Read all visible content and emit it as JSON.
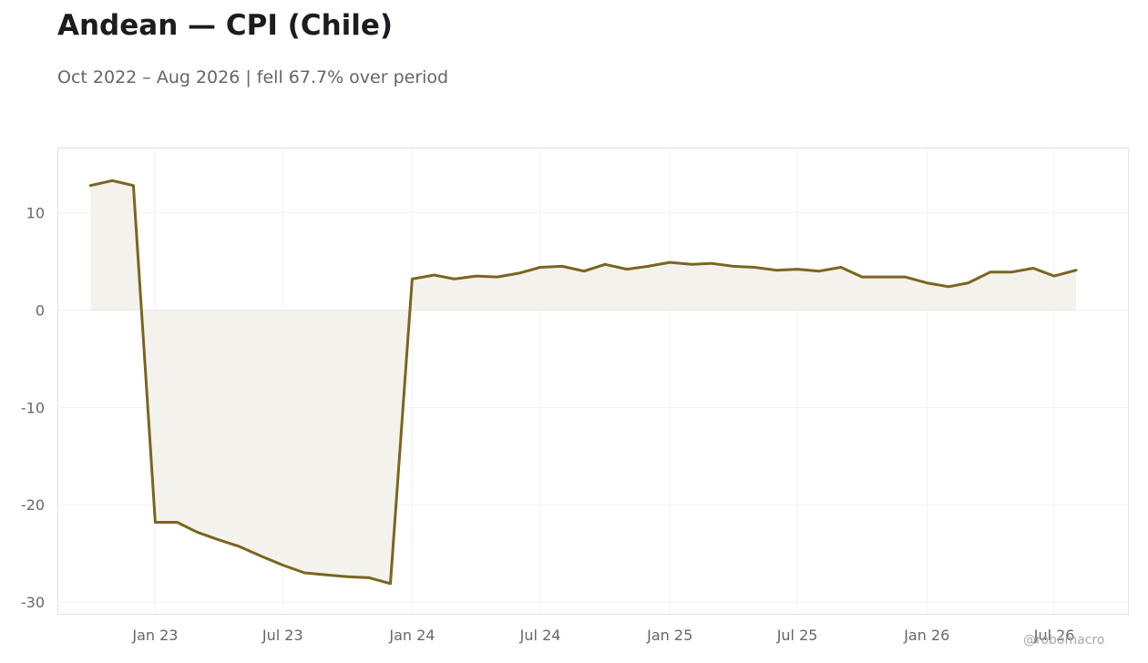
{
  "title": "Andean — CPI (Chile)",
  "subtitle": "Oct 2022 – Aug 2026 | fell 67.7% over period",
  "watermark": "@robomacro",
  "colors": {
    "line": "#7a6520",
    "fill": "#f4f2ec",
    "grid": "#f1f1f1",
    "frame": "#e2e2e2"
  },
  "chart_data": {
    "type": "area",
    "title": "Andean — CPI (Chile)",
    "subtitle": "Oct 2022 – Aug 2026 | fell 67.7% over period",
    "xlabel": "",
    "ylabel": "",
    "xlim": [
      "2022-08-15",
      "2026-10-15"
    ],
    "ylim": [
      -31.3,
      16.7
    ],
    "grid": true,
    "legend": "none",
    "x_ticks": [
      {
        "date": "2023-01-01",
        "label": "Jan 23"
      },
      {
        "date": "2023-07-01",
        "label": "Jul 23"
      },
      {
        "date": "2024-01-01",
        "label": "Jan 24"
      },
      {
        "date": "2024-07-01",
        "label": "Jul 24"
      },
      {
        "date": "2025-01-01",
        "label": "Jan 25"
      },
      {
        "date": "2025-07-01",
        "label": "Jul 25"
      },
      {
        "date": "2026-01-01",
        "label": "Jan 26"
      },
      {
        "date": "2026-07-01",
        "label": "Jul 26"
      }
    ],
    "y_ticks": [
      {
        "value": 10,
        "label": "10"
      },
      {
        "value": 0,
        "label": "0"
      },
      {
        "value": -10,
        "label": "-10"
      },
      {
        "value": -20,
        "label": "-20"
      },
      {
        "value": -30,
        "label": "-30"
      }
    ],
    "x": [
      "2022-10-01",
      "2022-11-01",
      "2022-12-01",
      "2023-01-01",
      "2023-02-01",
      "2023-03-01",
      "2023-04-01",
      "2023-05-01",
      "2023-06-01",
      "2023-07-01",
      "2023-08-01",
      "2023-09-01",
      "2023-10-01",
      "2023-11-01",
      "2023-12-01",
      "2024-01-01",
      "2024-02-01",
      "2024-03-01",
      "2024-04-01",
      "2024-05-01",
      "2024-06-01",
      "2024-07-01",
      "2024-08-01",
      "2024-09-01",
      "2024-10-01",
      "2024-11-01",
      "2024-12-01",
      "2025-01-01",
      "2025-02-01",
      "2025-03-01",
      "2025-04-01",
      "2025-05-01",
      "2025-06-01",
      "2025-07-01",
      "2025-08-01",
      "2025-09-01",
      "2025-10-01",
      "2025-11-01",
      "2025-12-01",
      "2026-01-01",
      "2026-02-01",
      "2026-03-01",
      "2026-04-01",
      "2026-05-01",
      "2026-06-01",
      "2026-07-01",
      "2026-08-01"
    ],
    "values": [
      12.8,
      13.3,
      12.8,
      -21.8,
      -21.8,
      -22.8,
      -23.6,
      -24.3,
      -25.3,
      -26.2,
      -27.0,
      -27.2,
      -27.4,
      -27.5,
      -28.1,
      3.2,
      3.6,
      3.2,
      3.5,
      3.4,
      3.8,
      4.4,
      4.5,
      4.0,
      4.7,
      4.2,
      4.5,
      4.9,
      4.7,
      4.8,
      4.5,
      4.4,
      4.1,
      4.2,
      4.0,
      4.4,
      3.4,
      3.4,
      3.4,
      2.8,
      2.4,
      2.8,
      3.9,
      3.9,
      4.3,
      3.5,
      4.1
    ]
  }
}
